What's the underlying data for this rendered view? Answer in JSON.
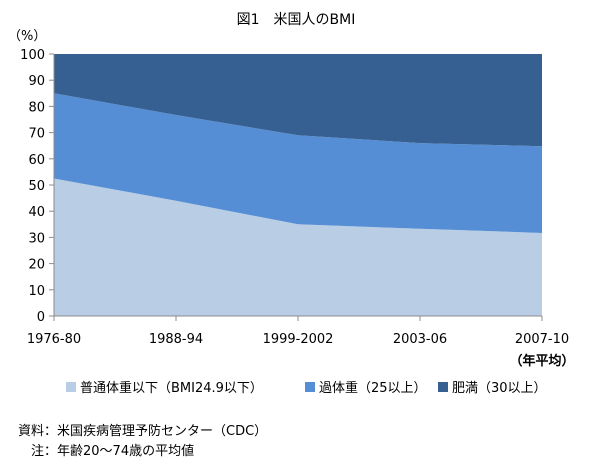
{
  "chart_data": {
    "type": "area",
    "stacked": true,
    "title": "図1　米国人のBMI",
    "y_unit_label": "（%）",
    "x_unit_label": "（年平均）",
    "categories": [
      "1976-80",
      "1988-94",
      "1999-2002",
      "2003-06",
      "2007-10"
    ],
    "ylim": [
      0,
      100
    ],
    "yticks": [
      0,
      10,
      20,
      30,
      40,
      50,
      60,
      70,
      80,
      90,
      100
    ],
    "grid": false,
    "legend_position": "bottom",
    "series": [
      {
        "name": "普通体重以下（BMI24.9以下）",
        "values": [
          52.5,
          44,
          35,
          33.3,
          31.7
        ],
        "color": "#b9cde5"
      },
      {
        "name": "過体重（25以上）",
        "values": [
          32.5,
          32.7,
          34,
          32.7,
          33.1
        ],
        "color": "#558ed5"
      },
      {
        "name": "肥満（30以上）",
        "values": [
          15,
          23.3,
          31,
          34,
          35.2
        ],
        "color": "#376092"
      }
    ]
  },
  "notes": {
    "source": "資料：米国疾病管理予防センター（CDC）",
    "note": "　注：年齢20～74歳の平均値"
  }
}
